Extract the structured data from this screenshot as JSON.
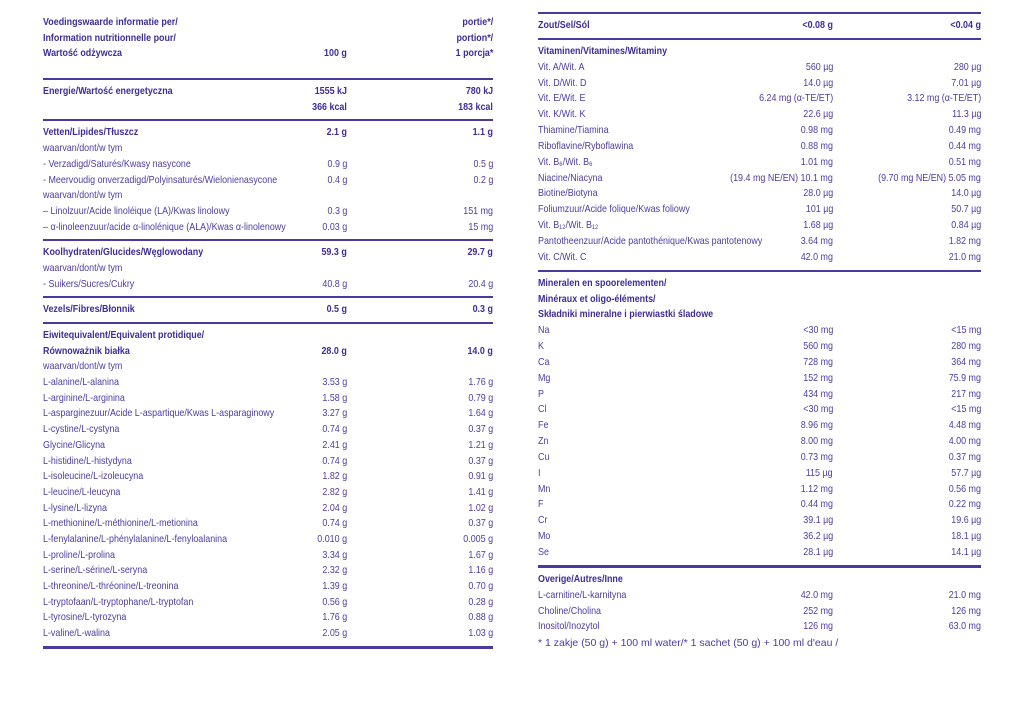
{
  "colors": {
    "text": "#4c3ca1",
    "bold_text": "#3d2d97",
    "rule": "#4a3a9e",
    "background": "#ffffff"
  },
  "footnote": "* 1 zakje (50 g) + 100 ml water/* 1 sachet (50 g) + 100 ml d'eau /",
  "left_table": {
    "blocks": [
      {
        "name": "header",
        "rule_after": "normal",
        "rows": [
          {
            "label": "Voedingswaarde informatie per/",
            "vp": "portie*/",
            "bold": true
          },
          {
            "label": "Information nutritionnelle pour/",
            "vp": "portion*/",
            "bold": true
          },
          {
            "label": "Wartość odżywcza",
            "v100": "100 g",
            "vp": "1 porcja*",
            "bold": true
          },
          {
            "spacer": true
          }
        ]
      },
      {
        "name": "energy",
        "rule_after": "normal",
        "rows": [
          {
            "label": "Energie/Wartość energetyczna",
            "v100": "1555 kJ",
            "vp": "780 kJ",
            "bold": true
          },
          {
            "label": "",
            "v100": "366 kcal",
            "vp": "183 kcal",
            "bold": true
          }
        ]
      },
      {
        "name": "fat",
        "rule_after": "normal",
        "rows": [
          {
            "label": "Vetten/Lipides/Tłuszcz",
            "v100": "2.1 g",
            "vp": "1.1 g",
            "bold": true
          },
          {
            "label": "waarvan/dont/w tym"
          },
          {
            "label": "- Verzadigd/Saturés/Kwasy nasycone",
            "v100": "0.9 g",
            "vp": "0.5 g"
          },
          {
            "label": "- Meervoudig onverzadigd/Polyinsaturés/Wielonienasycone",
            "v100": "0.4 g",
            "vp": "0.2 g"
          },
          {
            "label": "waarvan/dont/w tym"
          },
          {
            "label": "– Linolzuur/Acide linoléique (LA)/Kwas linolowy",
            "v100": "0.3 g",
            "vp": "151 mg"
          },
          {
            "label": "– α-linoleenzuur/acide α-linolénique (ALA)/Kwas α-linolenowy",
            "v100": "0.03 g",
            "vp": "15 mg"
          }
        ]
      },
      {
        "name": "carbohydrate",
        "rule_after": "normal",
        "rows": [
          {
            "label": "Koolhydraten/Glucides/Węglowodany",
            "v100": "59.3 g",
            "vp": "29.7 g",
            "bold": true
          },
          {
            "label": "waarvan/dont/w tym"
          },
          {
            "label": "- Suikers/Sucres/Cukry",
            "v100": "40.8 g",
            "vp": "20.4 g"
          }
        ]
      },
      {
        "name": "fiber",
        "rule_after": "normal",
        "rows": [
          {
            "label": "Vezels/Fibres/Błonnik",
            "v100": "0.5 g",
            "vp": "0.3 g",
            "bold": true
          }
        ]
      },
      {
        "name": "protein",
        "rule_after": "thick",
        "rows": [
          {
            "label": "Eiwitequivalent/Equivalent protidique/",
            "bold": true
          },
          {
            "label": "Równoważnik białka",
            "v100": "28.0 g",
            "vp": "14.0 g",
            "bold": true
          },
          {
            "label": "waarvan/dont/w tym"
          },
          {
            "label": "L-alanine/L-alanina",
            "v100": "3.53 g",
            "vp": "1.76 g"
          },
          {
            "label": "L-arginine/L-arginina",
            "v100": "1.58 g",
            "vp": "0.79 g"
          },
          {
            "label": "L-asparginezuur/Acide L-aspartique/Kwas L-asparaginowy",
            "v100": "3.27 g",
            "vp": "1.64 g"
          },
          {
            "label": "L-cystine/L-cystyna",
            "v100": "0.74 g",
            "vp": "0.37 g"
          },
          {
            "label": "Glycine/Glicyna",
            "v100": "2.41 g",
            "vp": "1.21 g"
          },
          {
            "label": "L-histidine/L-histydyna",
            "v100": "0.74 g",
            "vp": "0.37 g"
          },
          {
            "label": "L-isoleucine/L-izoleucyna",
            "v100": "1.82 g",
            "vp": "0.91 g"
          },
          {
            "label": "L-leucine/L-leucyna",
            "v100": "2.82 g",
            "vp": "1.41 g"
          },
          {
            "label": "L-lysine/L-lizyna",
            "v100": "2.04 g",
            "vp": "1.02 g"
          },
          {
            "label": "L-methionine/L-méthionine/L-metionina",
            "v100": "0.74 g",
            "vp": "0.37 g"
          },
          {
            "label": "L-fenylalanine/L-phénylalanine/L-fenyloalanina",
            "v100": "0.010 g",
            "vp": "0.005 g"
          },
          {
            "label": "L-proline/L-prolina",
            "v100": "3.34 g",
            "vp": "1.67 g"
          },
          {
            "label": "L-serine/L-sérine/L-seryna",
            "v100": "2.32 g",
            "vp": "1.16 g"
          },
          {
            "label": "L-threonine/L-thréonine/L-treonina",
            "v100": "1.39 g",
            "vp": "0.70 g"
          },
          {
            "label": "L-tryptofaan/L-tryptophane/L-tryptofan",
            "v100": "0.56 g",
            "vp": "0.28 g"
          },
          {
            "label": "L-tyrosine/L-tyrozyna",
            "v100": "1.76 g",
            "vp": "0.88 g"
          },
          {
            "label": "L-valine/L-walina",
            "v100": "2.05 g",
            "vp": "1.03 g"
          }
        ]
      }
    ]
  },
  "right_table": {
    "blocks": [
      {
        "name": "salt",
        "rule_before": "normal",
        "rule_after": "normal",
        "rows": [
          {
            "label": "Zout/Sel/Sól",
            "v100": "<0.08 g",
            "vp": "<0.04 g",
            "bold": true
          }
        ]
      },
      {
        "name": "vitamins",
        "rule_after": "normal",
        "rows": [
          {
            "label": "Vitaminen/Vitamines/Witaminy",
            "bold": true
          },
          {
            "label": "Vit. A/Wit. A",
            "v100": "560 µg",
            "vp": "280 µg"
          },
          {
            "label": "Vit. D/Wit. D",
            "v100": "14.0 µg",
            "vp": "7.01 µg"
          },
          {
            "label": "Vit. E/Wit. E",
            "v100": "6.24 mg (α-TE/ET)",
            "vp": "3.12 mg (α-TE/ET)"
          },
          {
            "label": "Vit. K/Wit. K",
            "v100": "22.6 µg",
            "vp": "11.3 µg"
          },
          {
            "label": "Thiamine/Tiamina",
            "v100": "0.98 mg",
            "vp": "0.49 mg"
          },
          {
            "label": "Riboflavine/Ryboflawina",
            "v100": "0.88 mg",
            "vp": "0.44 mg"
          },
          {
            "label": "Vit. B₆/Wit. B₆",
            "v100": "1.01 mg",
            "vp": "0.51 mg"
          },
          {
            "label": "Niacine/Niacyna",
            "v100": "(19.4 mg NE/EN) 10.1 mg",
            "vp": "(9.70 mg NE/EN) 5.05 mg"
          },
          {
            "label": "Biotine/Biotyna",
            "v100": "28.0 µg",
            "vp": "14.0 µg"
          },
          {
            "label": "Foliumzuur/Acide folique/Kwas foliowy",
            "v100": "101 µg",
            "vp": "50.7 µg"
          },
          {
            "label": "Vit. B₁₂/Wit. B₁₂",
            "v100": "1.68 µg",
            "vp": "0.84 µg"
          },
          {
            "label": "Pantotheenzuur/Acide pantothénique/Kwas pantotenowy",
            "v100": "3.64 mg",
            "vp": "1.82 mg"
          },
          {
            "label": "Vit. C/Wit. C",
            "v100": "42.0 mg",
            "vp": "21.0 mg"
          }
        ]
      },
      {
        "name": "minerals",
        "rule_after": "thick",
        "rows": [
          {
            "label": "Mineralen en spoorelementen/",
            "bold": true
          },
          {
            "label": "Minéraux et oligo-éléments/",
            "bold": true
          },
          {
            "label": "Składniki mineralne i pierwiastki śladowe",
            "bold": true
          },
          {
            "label": "Na",
            "v100": "<30 mg",
            "vp": "<15 mg"
          },
          {
            "label": "K",
            "v100": "560 mg",
            "vp": "280 mg"
          },
          {
            "label": "Ca",
            "v100": "728 mg",
            "vp": "364 mg"
          },
          {
            "label": "Mg",
            "v100": "152 mg",
            "vp": "75.9 mg"
          },
          {
            "label": "P",
            "v100": "434 mg",
            "vp": "217 mg"
          },
          {
            "label": "Cl",
            "v100": "<30 mg",
            "vp": "<15 mg"
          },
          {
            "label": "Fe",
            "v100": "8.96 mg",
            "vp": "4.48 mg"
          },
          {
            "label": "Zn",
            "v100": "8.00 mg",
            "vp": "4.00 mg"
          },
          {
            "label": "Cu",
            "v100": "0.73 mg",
            "vp": "0.37 mg"
          },
          {
            "label": "I",
            "v100": "115 µg",
            "vp": "57.7 µg"
          },
          {
            "label": "Mn",
            "v100": "1.12 mg",
            "vp": "0.56 mg"
          },
          {
            "label": "F",
            "v100": "0.44 mg",
            "vp": "0.22 mg"
          },
          {
            "label": "Cr",
            "v100": "39.1 µg",
            "vp": "19.6 µg"
          },
          {
            "label": "Mo",
            "v100": "36.2 µg",
            "vp": "18.1 µg"
          },
          {
            "label": "Se",
            "v100": "28.1 µg",
            "vp": "14.1 µg"
          }
        ]
      },
      {
        "name": "other",
        "rows": [
          {
            "label": "Overige/Autres/Inne",
            "bold": true
          },
          {
            "label": "L-carnitine/L-karnityna",
            "v100": "42.0 mg",
            "vp": "21.0 mg"
          },
          {
            "label": "Choline/Cholina",
            "v100": "252 mg",
            "vp": "126 mg"
          },
          {
            "label": "Inositol/Inozytol",
            "v100": "126 mg",
            "vp": "63.0 mg"
          }
        ]
      }
    ]
  }
}
